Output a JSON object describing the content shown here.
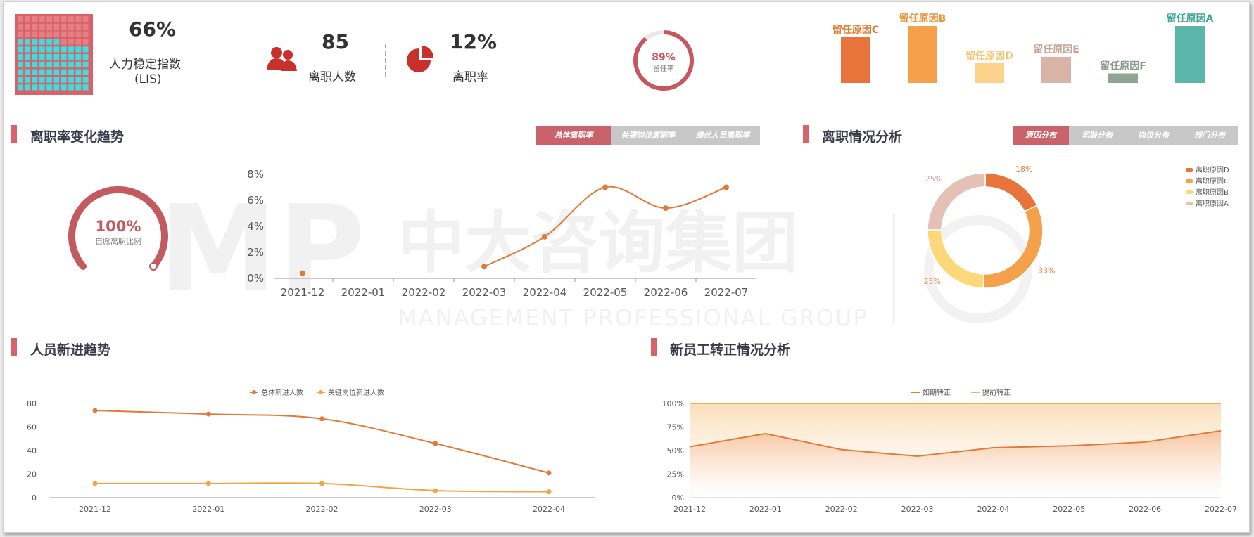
{
  "kpis": {
    "lis": {
      "value": "66%",
      "label": "人力稳定指数",
      "sub": "(LIS)",
      "fill_fraction": 0.66
    },
    "leavers": {
      "value": "85",
      "label": "离职人数"
    },
    "turnover": {
      "value": "12%",
      "label": "离职率"
    },
    "retention": {
      "value": "89%",
      "label": "留任率",
      "fraction": 0.89
    }
  },
  "retention_bars": {
    "type": "bar",
    "categories": [
      "留任原因C",
      "留任原因B",
      "留任原因D",
      "留任原因E",
      "留任原因F",
      "留任原因A"
    ],
    "values": [
      58,
      72,
      25,
      33,
      12,
      72
    ],
    "colors": [
      "#e8743b",
      "#f5a04a",
      "#fdd28a",
      "#d8b4a6",
      "#8fa594",
      "#5bb5a8"
    ],
    "label_colors": [
      "#e07a2e",
      "#e8943b",
      "#f3c773",
      "#c0a596",
      "#8c9b8f",
      "#3fa896"
    ]
  },
  "sections": {
    "turnover_trend": "离职率变化趋势",
    "turnover_analysis": "离职情况分析",
    "hiring_trend": "人员新进趋势",
    "regularization": "新员工转正情况分析"
  },
  "tabs_left": [
    {
      "label": "总体离职率",
      "active": true
    },
    {
      "label": "关键岗位离职率",
      "active": false
    },
    {
      "label": "绩优人员离职率",
      "active": false
    }
  ],
  "tabs_right": [
    {
      "label": "原因分布",
      "active": true
    },
    {
      "label": "司龄分布",
      "active": false
    },
    {
      "label": "岗位分布",
      "active": false
    },
    {
      "label": "部门分布",
      "active": false
    }
  ],
  "voluntary_gauge": {
    "value": "100%",
    "label": "自愿离职比例",
    "fraction": 1.0
  },
  "watermark": {
    "cn": "中大咨询集团",
    "en": "MANAGEMENT PROFESSIONAL GROUP",
    "logo": "MP",
    "small": "中大咨询"
  },
  "colors": {
    "accent": "#d9626a",
    "orange": "#e07a3a"
  },
  "chart_data": [
    {
      "type": "line",
      "categories": [
        "2021-12",
        "2022-01",
        "2022-02",
        "2022-03",
        "2022-04",
        "2022-05",
        "2022-06",
        "2022-07"
      ],
      "series": [
        {
          "values": [
            0.4,
            null,
            null,
            0.9,
            3.2,
            7.0,
            5.4,
            7.0
          ]
        }
      ],
      "ylim": [
        0,
        8
      ],
      "yticks": [
        "0%",
        "2%",
        "4%",
        "6%",
        "8%"
      ]
    },
    {
      "type": "pie",
      "categories": [
        "离职原因D",
        "离职原因C",
        "离职原因B",
        "离职原因A"
      ],
      "values": [
        18,
        33,
        25,
        25
      ],
      "labels": [
        "18%",
        "33%",
        "25%",
        "25%"
      ],
      "colors": [
        "#e8743b",
        "#f5a04a",
        "#fdd87a",
        "#e3c2b5"
      ]
    },
    {
      "type": "line",
      "categories": [
        "2021-12",
        "2022-01",
        "2022-02",
        "2022-03",
        "2022-04"
      ],
      "series": [
        {
          "name": "总体新进人数",
          "values": [
            74,
            71,
            67,
            46,
            21
          ],
          "color": "#e07a3a"
        },
        {
          "name": "关键岗位新进人数",
          "values": [
            12,
            12,
            12,
            6,
            5
          ],
          "color": "#f3a542"
        }
      ],
      "ylim": [
        0,
        80
      ],
      "yticks": [
        "0",
        "20",
        "40",
        "60",
        "80"
      ]
    },
    {
      "type": "area",
      "categories": [
        "2021-12",
        "2022-01",
        "2022-02",
        "2022-03",
        "2022-04",
        "2022-05",
        "2022-06",
        "2022-07"
      ],
      "series": [
        {
          "name": "如期转正",
          "values": [
            54,
            68,
            51,
            44,
            53,
            55,
            59,
            71
          ],
          "color": "#e07a3a"
        },
        {
          "name": "提前转正",
          "values": [
            100,
            100,
            100,
            100,
            100,
            100,
            100,
            100
          ],
          "color": "#f3b058"
        }
      ],
      "ylim": [
        0,
        100
      ],
      "yticks": [
        "0%",
        "25%",
        "50%",
        "75%",
        "100%"
      ]
    }
  ]
}
